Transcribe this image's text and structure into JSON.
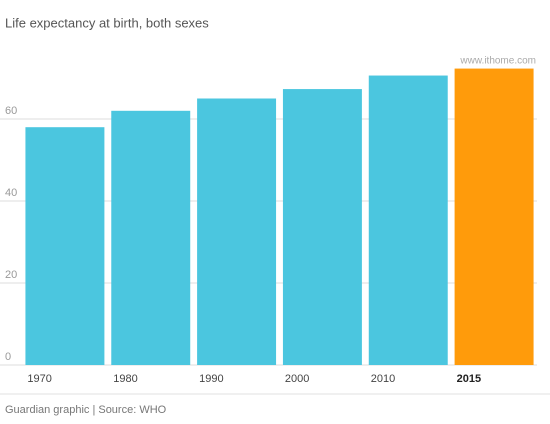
{
  "chart_data": {
    "type": "bar",
    "title": "Life expectancy at birth, both sexes",
    "categories": [
      "1970",
      "1980",
      "1990",
      "2000",
      "2010",
      "2015"
    ],
    "values": [
      58,
      62,
      65,
      67.3,
      70.6,
      72.3
    ],
    "colors": [
      "#4bc6df",
      "#4bc6df",
      "#4bc6df",
      "#4bc6df",
      "#4bc6df",
      "#ff9b0b"
    ],
    "highlight": "2015",
    "ylim": [
      0,
      75
    ],
    "yticks": [
      0,
      20,
      40,
      60
    ],
    "grid": true,
    "source": "Guardian graphic | Source: WHO",
    "watermark": "www.ithome.com"
  }
}
